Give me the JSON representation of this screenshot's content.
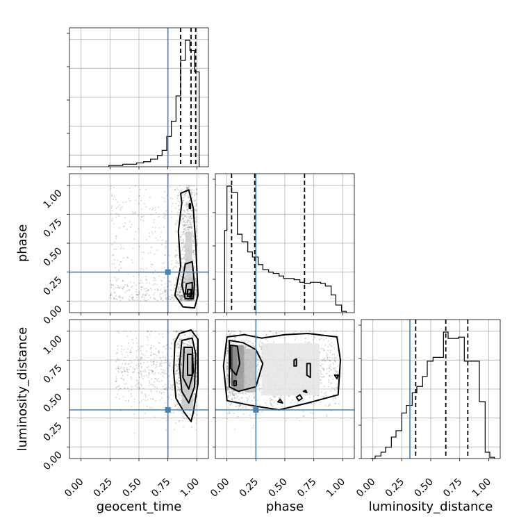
{
  "chart_data": {
    "type": "corner",
    "parameters": [
      "geocent_time",
      "phase",
      "luminosity_distance"
    ],
    "tick_labels": [
      "0.00",
      "0.25",
      "0.50",
      "0.75",
      "1.00"
    ],
    "tick_values": [
      0,
      0.25,
      0.5,
      0.75,
      1.0
    ],
    "axis_range": [
      -0.1,
      1.1
    ],
    "truth_color": "#4682b4",
    "truths": {
      "geocent_time": 0.75,
      "phase": 0.25,
      "luminosity_distance": 0.32
    },
    "quantiles": {
      "geocent_time": [
        0.86,
        0.95,
        0.99
      ],
      "phase": [
        0.04,
        0.24,
        0.67
      ],
      "luminosity_distance": [
        0.37,
        0.63,
        0.82
      ]
    },
    "histograms": {
      "geocent_time": {
        "bins": [
          0.24,
          0.3,
          0.36,
          0.42,
          0.48,
          0.54,
          0.6,
          0.66,
          0.7,
          0.74,
          0.78,
          0.82,
          0.86,
          0.9,
          0.94,
          0.98,
          1.02
        ],
        "counts": [
          0.01,
          0.01,
          0.02,
          0.02,
          0.03,
          0.04,
          0.06,
          0.09,
          0.13,
          0.24,
          0.36,
          0.56,
          0.84,
          1.0,
          0.92,
          0.75
        ]
      },
      "phase": {
        "bins": [
          -0.02,
          0.0,
          0.04,
          0.09,
          0.13,
          0.18,
          0.22,
          0.27,
          0.31,
          0.36,
          0.4,
          0.45,
          0.49,
          0.54,
          0.58,
          0.63,
          0.67,
          0.72,
          0.76,
          0.81,
          0.85,
          0.9,
          0.94,
          0.99,
          1.03
        ],
        "counts": [
          0.65,
          1.0,
          0.95,
          0.62,
          0.56,
          0.48,
          0.44,
          0.38,
          0.34,
          0.32,
          0.31,
          0.29,
          0.27,
          0.27,
          0.26,
          0.24,
          0.23,
          0.24,
          0.24,
          0.23,
          0.21,
          0.14,
          0.06,
          0.01
        ]
      },
      "luminosity_distance": {
        "bins": [
          -0.02,
          0.02,
          0.07,
          0.11,
          0.16,
          0.2,
          0.25,
          0.29,
          0.34,
          0.38,
          0.43,
          0.47,
          0.52,
          0.56,
          0.61,
          0.65,
          0.7,
          0.74,
          0.79,
          0.83,
          0.88,
          0.92,
          0.97,
          1.01,
          1.05
        ],
        "counts": [
          0.0,
          0.02,
          0.05,
          0.09,
          0.17,
          0.22,
          0.36,
          0.42,
          0.52,
          0.57,
          0.65,
          0.77,
          0.8,
          0.8,
          1.0,
          0.95,
          0.95,
          0.96,
          0.77,
          0.77,
          0.77,
          0.45,
          0.05,
          0.01
        ]
      }
    },
    "contours": {
      "phase_vs_geocent_time": [
        [
          [
            0.86,
            0.93
          ],
          [
            0.93,
            0.96
          ],
          [
            0.97,
            0.8
          ],
          [
            0.99,
            0.5
          ],
          [
            1.0,
            0.28
          ],
          [
            1.01,
            0.05
          ],
          [
            0.98,
            -0.06
          ],
          [
            0.88,
            -0.05
          ],
          [
            0.81,
            0.05
          ],
          [
            0.86,
            0.3
          ],
          [
            0.84,
            0.6
          ],
          [
            0.87,
            0.85
          ]
        ],
        [
          [
            0.9,
            0.32
          ],
          [
            0.96,
            0.34
          ],
          [
            0.98,
            0.15
          ],
          [
            0.97,
            0.02
          ],
          [
            0.9,
            0.02
          ],
          [
            0.87,
            0.14
          ]
        ],
        [
          [
            0.91,
            0.15
          ],
          [
            0.96,
            0.16
          ],
          [
            0.96,
            0.06
          ],
          [
            0.9,
            0.06
          ]
        ],
        [
          [
            0.92,
            0.1
          ],
          [
            0.95,
            0.1
          ],
          [
            0.95,
            0.04
          ],
          [
            0.92,
            0.04
          ]
        ],
        [
          [
            0.935,
            0.84
          ],
          [
            0.945,
            0.84
          ],
          [
            0.945,
            0.8
          ],
          [
            0.935,
            0.8
          ]
        ]
      ],
      "luminosity_distance_vs_geocent_time": [
        [
          [
            0.85,
            0.98
          ],
          [
            0.95,
            1.01
          ],
          [
            1.01,
            0.93
          ],
          [
            1.01,
            0.55
          ],
          [
            0.97,
            0.3
          ],
          [
            0.95,
            0.22
          ],
          [
            0.89,
            0.3
          ],
          [
            0.82,
            0.42
          ],
          [
            0.8,
            0.65
          ],
          [
            0.81,
            0.9
          ]
        ],
        [
          [
            0.87,
            0.92
          ],
          [
            0.96,
            0.94
          ],
          [
            0.99,
            0.8
          ],
          [
            0.98,
            0.52
          ],
          [
            0.93,
            0.38
          ],
          [
            0.87,
            0.48
          ],
          [
            0.85,
            0.7
          ]
        ],
        [
          [
            0.89,
            0.86
          ],
          [
            0.96,
            0.86
          ],
          [
            0.97,
            0.65
          ],
          [
            0.93,
            0.5
          ],
          [
            0.88,
            0.6
          ]
        ],
        [
          [
            0.92,
            0.8
          ],
          [
            0.96,
            0.8
          ],
          [
            0.96,
            0.62
          ],
          [
            0.92,
            0.62
          ]
        ]
      ],
      "luminosity_distance_vs_phase": [
        [
          [
            0.0,
            0.95
          ],
          [
            0.15,
            0.97
          ],
          [
            0.3,
            0.94
          ],
          [
            0.5,
            0.97
          ],
          [
            0.7,
            0.98
          ],
          [
            0.95,
            0.95
          ],
          [
            0.98,
            0.75
          ],
          [
            0.96,
            0.45
          ],
          [
            0.7,
            0.38
          ],
          [
            0.45,
            0.32
          ],
          [
            0.2,
            0.36
          ],
          [
            0.0,
            0.4
          ],
          [
            -0.03,
            0.7
          ]
        ],
        [
          [
            0.02,
            0.92
          ],
          [
            0.14,
            0.9
          ],
          [
            0.25,
            0.84
          ],
          [
            0.31,
            0.72
          ],
          [
            0.25,
            0.52
          ],
          [
            0.1,
            0.48
          ],
          [
            0.02,
            0.52
          ]
        ],
        [
          [
            0.03,
            0.88
          ],
          [
            0.09,
            0.87
          ],
          [
            0.11,
            0.72
          ],
          [
            0.08,
            0.62
          ],
          [
            0.03,
            0.68
          ]
        ],
        [
          [
            0.06,
            0.57
          ],
          [
            0.08,
            0.57
          ],
          [
            0.08,
            0.53
          ],
          [
            0.06,
            0.53
          ]
        ],
        [
          [
            0.58,
            0.75
          ],
          [
            0.6,
            0.76
          ],
          [
            0.6,
            0.7
          ],
          [
            0.58,
            0.7
          ]
        ],
        [
          [
            0.69,
            0.72
          ],
          [
            0.72,
            0.72
          ],
          [
            0.72,
            0.6
          ],
          [
            0.69,
            0.62
          ]
        ],
        [
          [
            0.93,
            0.62
          ],
          [
            0.96,
            0.62
          ],
          [
            0.95,
            0.59
          ]
        ],
        [
          [
            0.6,
            0.43
          ],
          [
            0.63,
            0.45
          ],
          [
            0.65,
            0.42
          ],
          [
            0.62,
            0.4
          ]
        ],
        [
          [
            0.44,
            0.39
          ],
          [
            0.46,
            0.41
          ],
          [
            0.48,
            0.38
          ]
        ],
        [
          [
            0.66,
            0.48
          ],
          [
            0.68,
            0.49
          ],
          [
            0.69,
            0.47
          ]
        ]
      ]
    },
    "density": {
      "phase_vs_geocent_time": [
        {
          "x": 0.95,
          "y": 0.05,
          "w": 0.04,
          "h": 0.06,
          "v": 0.9
        },
        {
          "x": 0.95,
          "y": 0.15,
          "w": 0.05,
          "h": 0.12,
          "v": 0.45
        },
        {
          "x": 0.93,
          "y": 0.35,
          "w": 0.06,
          "h": 0.5,
          "v": 0.22
        }
      ],
      "luminosity_distance_vs_geocent_time": [
        {
          "x": 0.94,
          "y": 0.7,
          "w": 0.04,
          "h": 0.14,
          "v": 0.95
        },
        {
          "x": 0.93,
          "y": 0.68,
          "w": 0.07,
          "h": 0.32,
          "v": 0.5
        },
        {
          "x": 0.92,
          "y": 0.6,
          "w": 0.1,
          "h": 0.55,
          "v": 0.25
        }
      ],
      "luminosity_distance_vs_phase": [
        {
          "x": 0.06,
          "y": 0.7,
          "w": 0.05,
          "h": 0.36,
          "v": 0.85
        },
        {
          "x": 0.1,
          "y": 0.68,
          "w": 0.1,
          "h": 0.4,
          "v": 0.5
        },
        {
          "x": 0.2,
          "y": 0.66,
          "w": 0.1,
          "h": 0.38,
          "v": 0.3
        },
        {
          "x": 0.55,
          "y": 0.67,
          "w": 0.5,
          "h": 0.45,
          "v": 0.12
        }
      ]
    }
  }
}
